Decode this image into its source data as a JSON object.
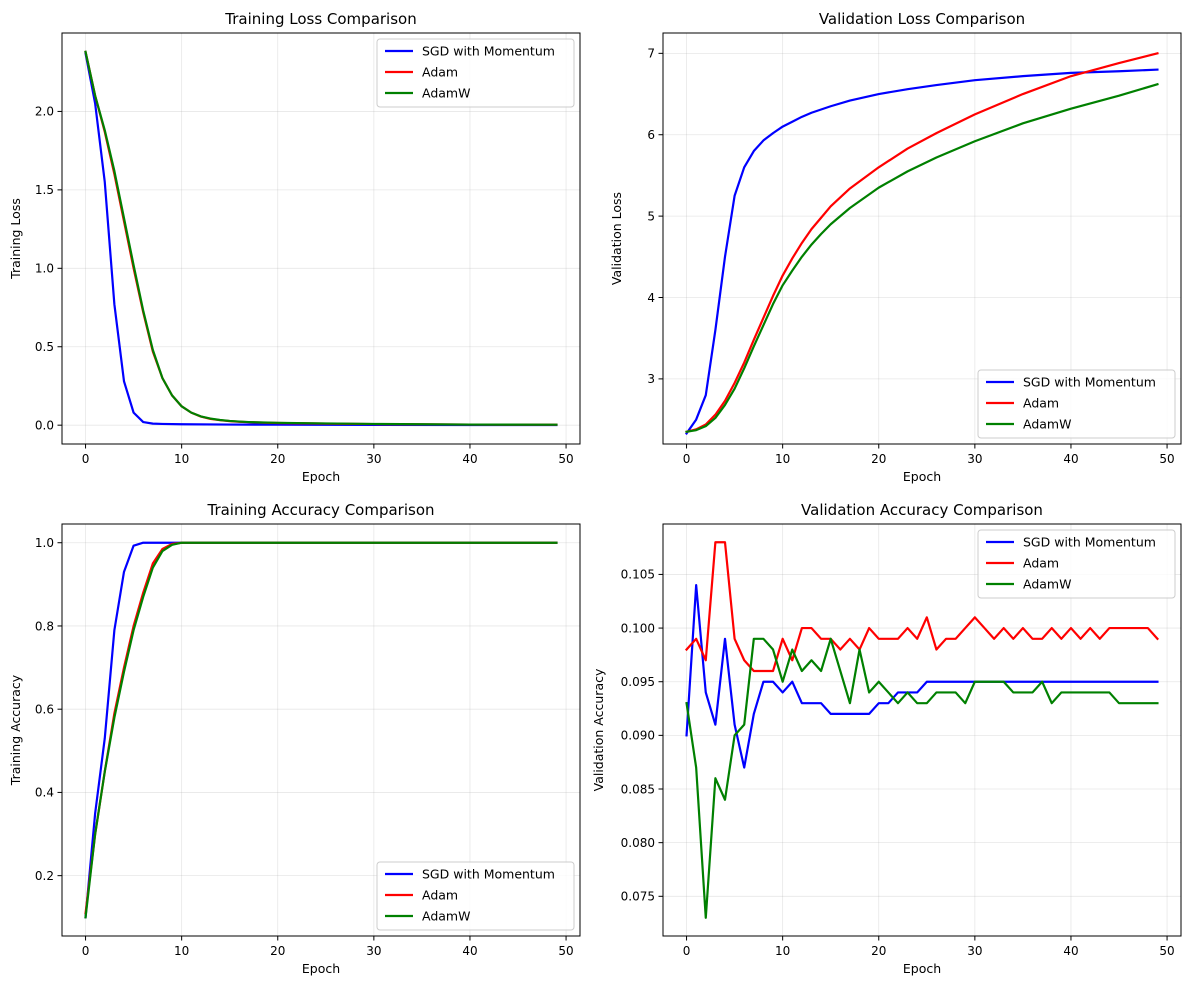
{
  "chart_data": [
    {
      "type": "line",
      "title": "Training Loss Comparison",
      "xlabel": "Epoch",
      "ylabel": "Training Loss",
      "xlim": [
        -2.45,
        51.45
      ],
      "ylim": [
        -0.12,
        2.5
      ],
      "xticks": [
        0,
        10,
        20,
        30,
        40,
        50
      ],
      "yticks": [
        0.0,
        0.5,
        1.0,
        1.5,
        2.0
      ],
      "ytick_labels": [
        "0.0",
        "0.5",
        "1.0",
        "1.5",
        "2.0"
      ],
      "grid": true,
      "legend_position": "top-right",
      "series": [
        {
          "name": "SGD with Momentum",
          "color": "#0000ff",
          "x": [
            0,
            1,
            2,
            3,
            4,
            5,
            6,
            7,
            8,
            10,
            15,
            20,
            30,
            40,
            49
          ],
          "y": [
            2.37,
            2.05,
            1.55,
            0.77,
            0.28,
            0.08,
            0.02,
            0.01,
            0.008,
            0.006,
            0.004,
            0.003,
            0.002,
            0.001,
            0.001
          ]
        },
        {
          "name": "Adam",
          "color": "#ff0000",
          "x": [
            0,
            1,
            2,
            3,
            4,
            5,
            6,
            7,
            8,
            9,
            10,
            11,
            12,
            13,
            14,
            15,
            16,
            17,
            18,
            20,
            25,
            30,
            35,
            40,
            49
          ],
          "y": [
            2.38,
            2.1,
            1.87,
            1.6,
            1.3,
            1.0,
            0.72,
            0.47,
            0.3,
            0.19,
            0.12,
            0.08,
            0.055,
            0.04,
            0.032,
            0.026,
            0.022,
            0.019,
            0.017,
            0.014,
            0.01,
            0.007,
            0.005,
            0.004,
            0.003
          ]
        },
        {
          "name": "AdamW",
          "color": "#008000",
          "x": [
            0,
            1,
            2,
            3,
            4,
            5,
            6,
            7,
            8,
            9,
            10,
            11,
            12,
            13,
            14,
            15,
            16,
            17,
            18,
            20,
            25,
            30,
            35,
            40,
            49
          ],
          "y": [
            2.38,
            2.1,
            1.88,
            1.62,
            1.32,
            1.02,
            0.73,
            0.48,
            0.3,
            0.19,
            0.12,
            0.08,
            0.056,
            0.042,
            0.033,
            0.027,
            0.023,
            0.02,
            0.018,
            0.015,
            0.011,
            0.008,
            0.006,
            0.004,
            0.003
          ]
        }
      ]
    },
    {
      "type": "line",
      "title": "Validation Loss Comparison",
      "xlabel": "Epoch",
      "ylabel": "Validation Loss",
      "xlim": [
        -2.45,
        51.45
      ],
      "ylim": [
        2.2,
        7.25
      ],
      "xticks": [
        0,
        10,
        20,
        30,
        40,
        50
      ],
      "yticks": [
        3,
        4,
        5,
        6,
        7
      ],
      "ytick_labels": [
        "3",
        "4",
        "5",
        "6",
        "7"
      ],
      "grid": true,
      "legend_position": "bottom-right",
      "series": [
        {
          "name": "SGD with Momentum",
          "color": "#0000ff",
          "x": [
            0,
            1,
            2,
            3,
            4,
            5,
            6,
            7,
            8,
            9,
            10,
            11,
            12,
            13,
            14,
            15,
            17,
            20,
            23,
            26,
            30,
            35,
            40,
            45,
            49
          ],
          "y": [
            2.33,
            2.5,
            2.8,
            3.6,
            4.5,
            5.25,
            5.6,
            5.8,
            5.93,
            6.02,
            6.1,
            6.16,
            6.22,
            6.27,
            6.31,
            6.35,
            6.42,
            6.5,
            6.56,
            6.61,
            6.67,
            6.72,
            6.76,
            6.78,
            6.8
          ]
        },
        {
          "name": "Adam",
          "color": "#ff0000",
          "x": [
            0,
            1,
            2,
            3,
            4,
            5,
            6,
            7,
            8,
            9,
            10,
            11,
            12,
            13,
            14,
            15,
            17,
            20,
            23,
            26,
            30,
            35,
            40,
            45,
            49
          ],
          "y": [
            2.35,
            2.38,
            2.44,
            2.56,
            2.73,
            2.95,
            3.2,
            3.48,
            3.75,
            4.02,
            4.27,
            4.48,
            4.67,
            4.84,
            4.98,
            5.12,
            5.34,
            5.6,
            5.83,
            6.02,
            6.25,
            6.5,
            6.72,
            6.88,
            7.0
          ]
        },
        {
          "name": "AdamW",
          "color": "#008000",
          "x": [
            0,
            1,
            2,
            3,
            4,
            5,
            6,
            7,
            8,
            9,
            10,
            11,
            12,
            13,
            14,
            15,
            17,
            20,
            23,
            26,
            30,
            35,
            40,
            45,
            49
          ],
          "y": [
            2.35,
            2.37,
            2.42,
            2.52,
            2.68,
            2.88,
            3.13,
            3.4,
            3.66,
            3.92,
            4.15,
            4.33,
            4.5,
            4.65,
            4.78,
            4.9,
            5.1,
            5.35,
            5.55,
            5.72,
            5.92,
            6.14,
            6.32,
            6.48,
            6.62
          ]
        }
      ]
    },
    {
      "type": "line",
      "title": "Training Accuracy Comparison",
      "xlabel": "Epoch",
      "ylabel": "Training Accuracy",
      "xlim": [
        -2.45,
        51.45
      ],
      "ylim": [
        0.055,
        1.045
      ],
      "xticks": [
        0,
        10,
        20,
        30,
        40,
        50
      ],
      "yticks": [
        0.2,
        0.4,
        0.6,
        0.8,
        1.0
      ],
      "ytick_labels": [
        "0.2",
        "0.4",
        "0.6",
        "0.8",
        "1.0"
      ],
      "grid": true,
      "legend_position": "bottom-right",
      "series": [
        {
          "name": "SGD with Momentum",
          "color": "#0000ff",
          "x": [
            0,
            1,
            2,
            3,
            4,
            5,
            6,
            7,
            8,
            10,
            20,
            30,
            40,
            49
          ],
          "y": [
            0.1,
            0.35,
            0.53,
            0.79,
            0.93,
            0.993,
            1.0,
            1.0,
            1.0,
            1.0,
            1.0,
            1.0,
            1.0,
            1.0
          ]
        },
        {
          "name": "Adam",
          "color": "#ff0000",
          "x": [
            0,
            1,
            2,
            3,
            4,
            5,
            6,
            7,
            8,
            9,
            10,
            11,
            12,
            20,
            30,
            40,
            49
          ],
          "y": [
            0.11,
            0.3,
            0.45,
            0.59,
            0.7,
            0.8,
            0.88,
            0.95,
            0.985,
            0.997,
            1.0,
            1.0,
            1.0,
            1.0,
            1.0,
            1.0,
            1.0
          ]
        },
        {
          "name": "AdamW",
          "color": "#008000",
          "x": [
            0,
            1,
            2,
            3,
            4,
            5,
            6,
            7,
            8,
            9,
            10,
            11,
            12,
            20,
            30,
            40,
            49
          ],
          "y": [
            0.1,
            0.3,
            0.45,
            0.58,
            0.69,
            0.79,
            0.87,
            0.94,
            0.98,
            0.995,
            1.0,
            1.0,
            1.0,
            1.0,
            1.0,
            1.0,
            1.0
          ]
        }
      ]
    },
    {
      "type": "line",
      "title": "Validation Accuracy Comparison",
      "xlabel": "Epoch",
      "ylabel": "Validation Accuracy",
      "xlim": [
        -2.45,
        51.45
      ],
      "ylim": [
        0.0713,
        0.1097
      ],
      "xticks": [
        0,
        10,
        20,
        30,
        40,
        50
      ],
      "yticks": [
        0.075,
        0.08,
        0.085,
        0.09,
        0.095,
        0.1,
        0.105
      ],
      "ytick_labels": [
        "0.075",
        "0.080",
        "0.085",
        "0.090",
        "0.095",
        "0.100",
        "0.105"
      ],
      "grid": true,
      "legend_position": "top-right",
      "series": [
        {
          "name": "SGD with Momentum",
          "color": "#0000ff",
          "x": [
            0,
            1,
            2,
            3,
            4,
            5,
            6,
            7,
            8,
            9,
            10,
            11,
            12,
            13,
            14,
            15,
            16,
            17,
            18,
            19,
            20,
            21,
            22,
            23,
            24,
            25,
            26,
            27,
            28,
            29,
            30,
            31,
            32,
            33,
            34,
            35,
            36,
            37,
            38,
            39,
            40,
            41,
            42,
            43,
            44,
            45,
            46,
            47,
            48,
            49
          ],
          "y": [
            0.09,
            0.104,
            0.094,
            0.091,
            0.099,
            0.091,
            0.087,
            0.092,
            0.095,
            0.095,
            0.094,
            0.095,
            0.093,
            0.093,
            0.093,
            0.092,
            0.092,
            0.092,
            0.092,
            0.092,
            0.093,
            0.093,
            0.094,
            0.094,
            0.094,
            0.095,
            0.095,
            0.095,
            0.095,
            0.095,
            0.095,
            0.095,
            0.095,
            0.095,
            0.095,
            0.095,
            0.095,
            0.095,
            0.095,
            0.095,
            0.095,
            0.095,
            0.095,
            0.095,
            0.095,
            0.095,
            0.095,
            0.095,
            0.095,
            0.095
          ]
        },
        {
          "name": "Adam",
          "color": "#ff0000",
          "x": [
            0,
            1,
            2,
            3,
            4,
            5,
            6,
            7,
            8,
            9,
            10,
            11,
            12,
            13,
            14,
            15,
            16,
            17,
            18,
            19,
            20,
            21,
            22,
            23,
            24,
            25,
            26,
            27,
            28,
            29,
            30,
            31,
            32,
            33,
            34,
            35,
            36,
            37,
            38,
            39,
            40,
            41,
            42,
            43,
            44,
            45,
            46,
            47,
            48,
            49
          ],
          "y": [
            0.098,
            0.099,
            0.097,
            0.108,
            0.108,
            0.099,
            0.097,
            0.096,
            0.096,
            0.096,
            0.099,
            0.097,
            0.1,
            0.1,
            0.099,
            0.099,
            0.098,
            0.099,
            0.098,
            0.1,
            0.099,
            0.099,
            0.099,
            0.1,
            0.099,
            0.101,
            0.098,
            0.099,
            0.099,
            0.1,
            0.101,
            0.1,
            0.099,
            0.1,
            0.099,
            0.1,
            0.099,
            0.099,
            0.1,
            0.099,
            0.1,
            0.099,
            0.1,
            0.099,
            0.1,
            0.1,
            0.1,
            0.1,
            0.1,
            0.099
          ]
        },
        {
          "name": "AdamW",
          "color": "#008000",
          "x": [
            0,
            1,
            2,
            3,
            4,
            5,
            6,
            7,
            8,
            9,
            10,
            11,
            12,
            13,
            14,
            15,
            16,
            17,
            18,
            19,
            20,
            21,
            22,
            23,
            24,
            25,
            26,
            27,
            28,
            29,
            30,
            31,
            32,
            33,
            34,
            35,
            36,
            37,
            38,
            39,
            40,
            41,
            42,
            43,
            44,
            45,
            46,
            47,
            48,
            49
          ],
          "y": [
            0.093,
            0.087,
            0.073,
            0.086,
            0.084,
            0.09,
            0.091,
            0.099,
            0.099,
            0.098,
            0.095,
            0.098,
            0.096,
            0.097,
            0.096,
            0.099,
            0.096,
            0.093,
            0.098,
            0.094,
            0.095,
            0.094,
            0.093,
            0.094,
            0.093,
            0.093,
            0.094,
            0.094,
            0.094,
            0.093,
            0.095,
            0.095,
            0.095,
            0.095,
            0.094,
            0.094,
            0.094,
            0.095,
            0.093,
            0.094,
            0.094,
            0.094,
            0.094,
            0.094,
            0.094,
            0.093,
            0.093,
            0.093,
            0.093,
            0.093
          ]
        }
      ]
    }
  ]
}
